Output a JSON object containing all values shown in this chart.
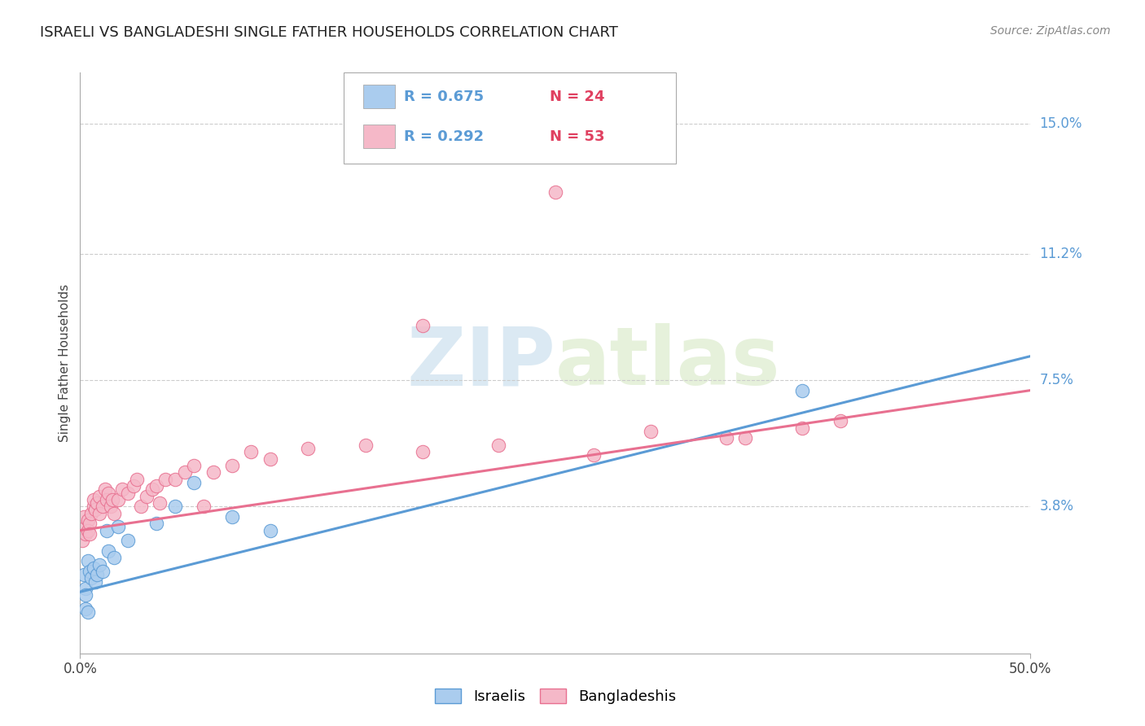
{
  "title": "ISRAELI VS BANGLADESHI SINGLE FATHER HOUSEHOLDS CORRELATION CHART",
  "source": "Source: ZipAtlas.com",
  "ylabel": "Single Father Households",
  "xlim": [
    0.0,
    0.5
  ],
  "ylim": [
    -0.005,
    0.165
  ],
  "legend_label_israelis": "Israelis",
  "legend_label_bangladeshis": "Bangladeshis",
  "blue_color": "#5b9bd5",
  "pink_color": "#e87090",
  "blue_scatter_color": "#aaccee",
  "pink_scatter_color": "#f5b8c8",
  "watermark_zip": "ZIP",
  "watermark_atlas": "atlas",
  "ytick_positions": [
    0.038,
    0.075,
    0.112,
    0.15
  ],
  "ytick_labels": [
    "3.8%",
    "7.5%",
    "11.2%",
    "15.0%"
  ],
  "israelis_x": [
    0.002,
    0.003,
    0.003,
    0.004,
    0.005,
    0.006,
    0.007,
    0.008,
    0.009,
    0.01,
    0.012,
    0.014,
    0.015,
    0.018,
    0.02,
    0.025,
    0.04,
    0.05,
    0.06,
    0.08,
    0.1,
    0.38,
    0.003,
    0.004
  ],
  "israelis_y": [
    0.018,
    0.014,
    0.012,
    0.022,
    0.019,
    0.017,
    0.02,
    0.016,
    0.018,
    0.021,
    0.019,
    0.031,
    0.025,
    0.023,
    0.032,
    0.028,
    0.033,
    0.038,
    0.045,
    0.035,
    0.031,
    0.072,
    0.008,
    0.007
  ],
  "bangladeshis_x": [
    0.001,
    0.002,
    0.002,
    0.003,
    0.004,
    0.004,
    0.005,
    0.005,
    0.006,
    0.007,
    0.007,
    0.008,
    0.009,
    0.01,
    0.01,
    0.012,
    0.013,
    0.014,
    0.015,
    0.016,
    0.017,
    0.018,
    0.02,
    0.022,
    0.025,
    0.028,
    0.03,
    0.032,
    0.035,
    0.038,
    0.04,
    0.042,
    0.045,
    0.05,
    0.055,
    0.06,
    0.065,
    0.07,
    0.08,
    0.09,
    0.1,
    0.12,
    0.15,
    0.18,
    0.22,
    0.27,
    0.3,
    0.34,
    0.38,
    0.4,
    0.35,
    0.18,
    0.25
  ],
  "bangladeshis_y": [
    0.028,
    0.032,
    0.035,
    0.03,
    0.034,
    0.031,
    0.033,
    0.03,
    0.036,
    0.038,
    0.04,
    0.037,
    0.039,
    0.041,
    0.036,
    0.038,
    0.043,
    0.04,
    0.042,
    0.038,
    0.04,
    0.036,
    0.04,
    0.043,
    0.042,
    0.044,
    0.046,
    0.038,
    0.041,
    0.043,
    0.044,
    0.039,
    0.046,
    0.046,
    0.048,
    0.05,
    0.038,
    0.048,
    0.05,
    0.054,
    0.052,
    0.055,
    0.056,
    0.054,
    0.056,
    0.053,
    0.06,
    0.058,
    0.061,
    0.063,
    0.058,
    0.091,
    0.13
  ],
  "israeli_trend_x": [
    0.0,
    0.5
  ],
  "israeli_trend_y": [
    0.013,
    0.082
  ],
  "bangladeshi_trend_x": [
    0.0,
    0.5
  ],
  "bangladeshi_trend_y": [
    0.031,
    0.072
  ]
}
